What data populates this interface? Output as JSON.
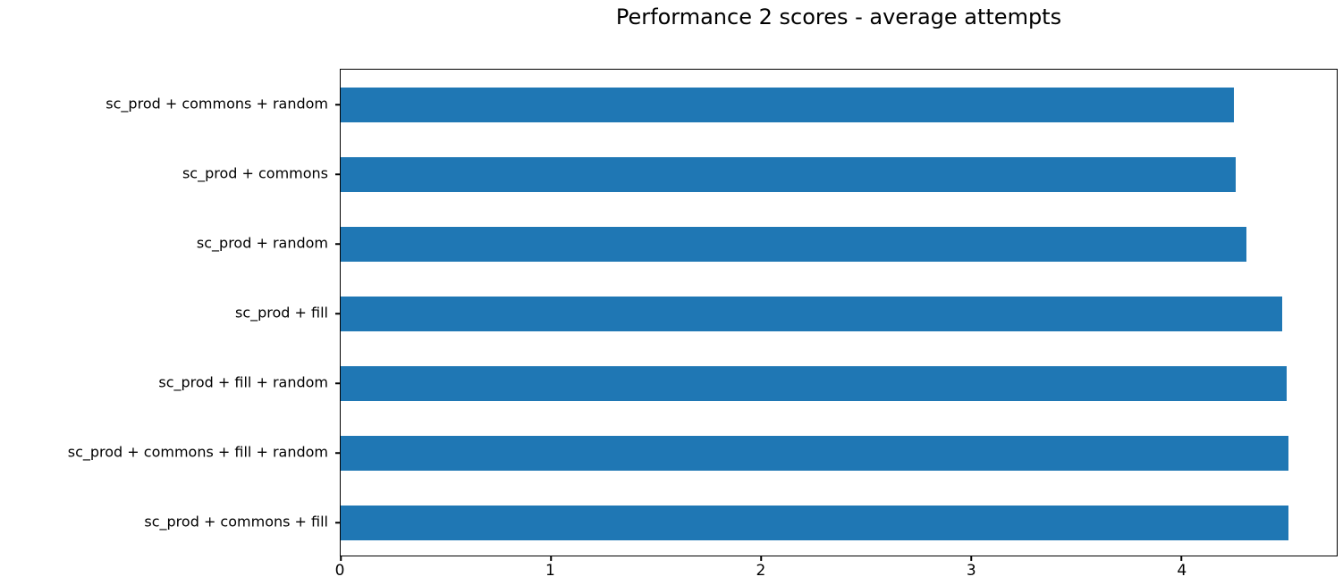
{
  "figure": {
    "background": "#ffffff",
    "spine_color": "#000000",
    "text_color": "#000000"
  },
  "chart_data": {
    "type": "bar",
    "orientation": "horizontal",
    "title": "Performance 2 scores - average attempts",
    "xlabel": "",
    "ylabel": "",
    "categories": [
      "sc_prod + commons + random",
      "sc_prod + commons",
      "sc_prod + random",
      "sc_prod + fill",
      "sc_prod + fill + random",
      "sc_prod + commons + fill + random",
      "sc_prod + commons + fill"
    ],
    "values": [
      4.25,
      4.26,
      4.31,
      4.48,
      4.5,
      4.51,
      4.51
    ],
    "xlim": [
      0,
      4.74
    ],
    "xticks": [
      0,
      1,
      2,
      3,
      4
    ],
    "xtick_labels": [
      "0",
      "1",
      "2",
      "3",
      "4"
    ],
    "bar_color": "#1f77b4",
    "bar_height_ratio": 0.5,
    "grid": false,
    "legend": false
  }
}
